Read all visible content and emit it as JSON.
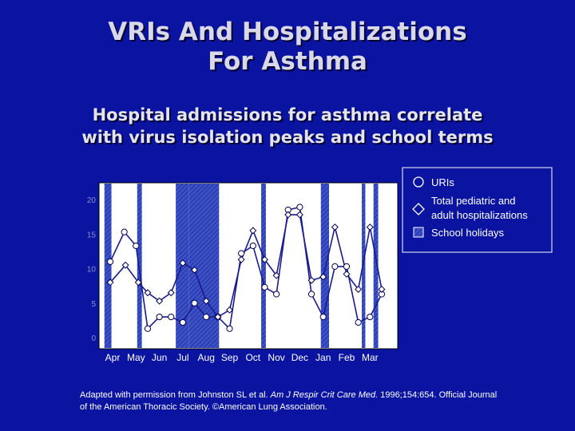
{
  "title": {
    "line1": "VRIs And Hospitalizations",
    "line2": "For Asthma"
  },
  "subtitle": {
    "line1": "Hospital admissions for asthma correlate",
    "line2": "with virus isolation peaks and school terms"
  },
  "colors": {
    "background": "#0a14a0",
    "plot_background": "#ffffff",
    "holiday_fill": "#3c50c8",
    "line": "#1a1a8c",
    "marker_fill": "#ffffff",
    "marker_stroke": "#000050"
  },
  "chart_data": {
    "type": "line",
    "x_categories": [
      "Apr",
      "May",
      "Jun",
      "Jul",
      "Aug",
      "Sep",
      "Oct",
      "Nov",
      "Dec",
      "Jan",
      "Feb",
      "Mar"
    ],
    "y_ticks": [
      0,
      5,
      10,
      15,
      20
    ],
    "ylim": [
      0,
      21
    ],
    "grid": false,
    "legend_position": "top-right",
    "legend": [
      {
        "key": "uris",
        "label": "URIs",
        "marker": "circle"
      },
      {
        "key": "hosp",
        "label_line1": "Total pediatric and",
        "label_line2": "adult hospitalizations",
        "marker": "diamond"
      },
      {
        "key": "holidays",
        "label": "School holidays",
        "marker": "hatched-square"
      }
    ],
    "school_holidays": [
      {
        "start": -0.35,
        "end": -0.05
      },
      {
        "start": 1.05,
        "end": 1.25
      },
      {
        "start": 2.7,
        "end": 3.25
      },
      {
        "start": 3.25,
        "end": 4.55
      },
      {
        "start": 6.35,
        "end": 6.55
      },
      {
        "start": 8.9,
        "end": 9.25
      },
      {
        "start": 10.65,
        "end": 10.8
      },
      {
        "start": 11.15,
        "end": 11.35
      }
    ],
    "series": [
      {
        "key": "uris",
        "marker": "circle",
        "points": [
          {
            "x": -0.1,
            "y": 11.0
          },
          {
            "x": 0.5,
            "y": 15.3
          },
          {
            "x": 1.0,
            "y": 13.3
          },
          {
            "x": 1.5,
            "y": 1.3
          },
          {
            "x": 2.0,
            "y": 3.0
          },
          {
            "x": 2.5,
            "y": 3.0
          },
          {
            "x": 3.0,
            "y": 2.2
          },
          {
            "x": 3.5,
            "y": 5.0
          },
          {
            "x": 4.0,
            "y": 3.0
          },
          {
            "x": 4.5,
            "y": 3.0
          },
          {
            "x": 5.0,
            "y": 1.3
          },
          {
            "x": 5.5,
            "y": 12.2
          },
          {
            "x": 6.0,
            "y": 13.3
          },
          {
            "x": 6.5,
            "y": 7.3
          },
          {
            "x": 7.0,
            "y": 6.3
          },
          {
            "x": 7.5,
            "y": 18.5
          },
          {
            "x": 8.0,
            "y": 18.9
          },
          {
            "x": 8.5,
            "y": 6.3
          },
          {
            "x": 9.0,
            "y": 3.0
          },
          {
            "x": 9.5,
            "y": 10.3
          },
          {
            "x": 10.0,
            "y": 10.3
          },
          {
            "x": 10.5,
            "y": 2.2
          },
          {
            "x": 11.0,
            "y": 3.0
          },
          {
            "x": 11.5,
            "y": 6.3
          }
        ]
      },
      {
        "key": "hosp",
        "marker": "diamond",
        "points": [
          {
            "x": -0.1,
            "y": 8.0
          },
          {
            "x": 0.55,
            "y": 10.5
          },
          {
            "x": 1.1,
            "y": 8.0
          },
          {
            "x": 1.5,
            "y": 6.5
          },
          {
            "x": 2.0,
            "y": 5.3
          },
          {
            "x": 2.5,
            "y": 6.5
          },
          {
            "x": 3.0,
            "y": 10.8
          },
          {
            "x": 3.5,
            "y": 9.8
          },
          {
            "x": 4.0,
            "y": 5.3
          },
          {
            "x": 4.5,
            "y": 3.0
          },
          {
            "x": 5.0,
            "y": 4.0
          },
          {
            "x": 5.5,
            "y": 11.3
          },
          {
            "x": 6.0,
            "y": 15.5
          },
          {
            "x": 6.5,
            "y": 11.3
          },
          {
            "x": 7.0,
            "y": 9.0
          },
          {
            "x": 7.5,
            "y": 17.8
          },
          {
            "x": 8.0,
            "y": 17.8
          },
          {
            "x": 8.5,
            "y": 8.3
          },
          {
            "x": 9.0,
            "y": 8.8
          },
          {
            "x": 9.5,
            "y": 16.0
          },
          {
            "x": 10.0,
            "y": 9.2
          },
          {
            "x": 10.5,
            "y": 7.0
          },
          {
            "x": 11.0,
            "y": 16.0
          },
          {
            "x": 11.5,
            "y": 7.0
          }
        ]
      }
    ]
  },
  "citation": {
    "part1": "Adapted with permission from Johnston SL et al. ",
    "journal": "Am J Respir Crit Care Med.",
    "part2": " 1996;154:654. Official Journal",
    "line2": "of the American Thoracic Society. ©American Lung Association."
  }
}
